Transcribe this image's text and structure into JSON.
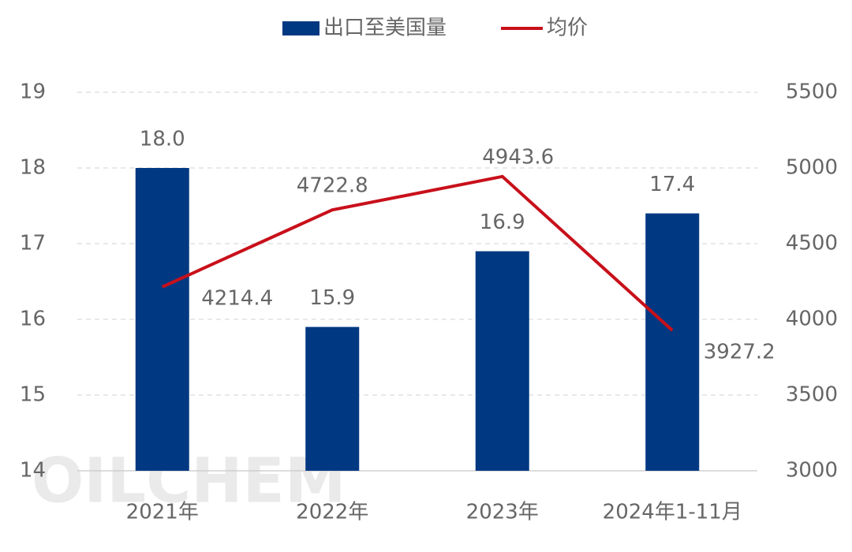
{
  "chart_data": {
    "type": "bar",
    "categories": [
      "2021年",
      "2022年",
      "2023年",
      "2024年1-11月"
    ],
    "series": [
      {
        "name": "出口至美国量",
        "color": "#003882",
        "values": [
          18.0,
          15.9,
          16.9,
          17.4
        ],
        "value_labels": [
          "18.0",
          "15.9",
          "16.9",
          "17.4"
        ]
      },
      {
        "name": "均价",
        "type": "line",
        "axis": "y2",
        "color": "#c8101a",
        "values": [
          4214.4,
          4722.8,
          4943.6,
          3927.2
        ]
      }
    ],
    "ylim": [
      14,
      19
    ],
    "yticks": [
      14,
      15,
      16,
      17,
      18,
      19
    ],
    "y2lim": [
      3000,
      5500
    ],
    "y2ticks": [
      3000,
      3500,
      4000,
      4500,
      5000,
      5500
    ],
    "grid": true,
    "legend": "top",
    "watermark": "OILCHEM"
  }
}
